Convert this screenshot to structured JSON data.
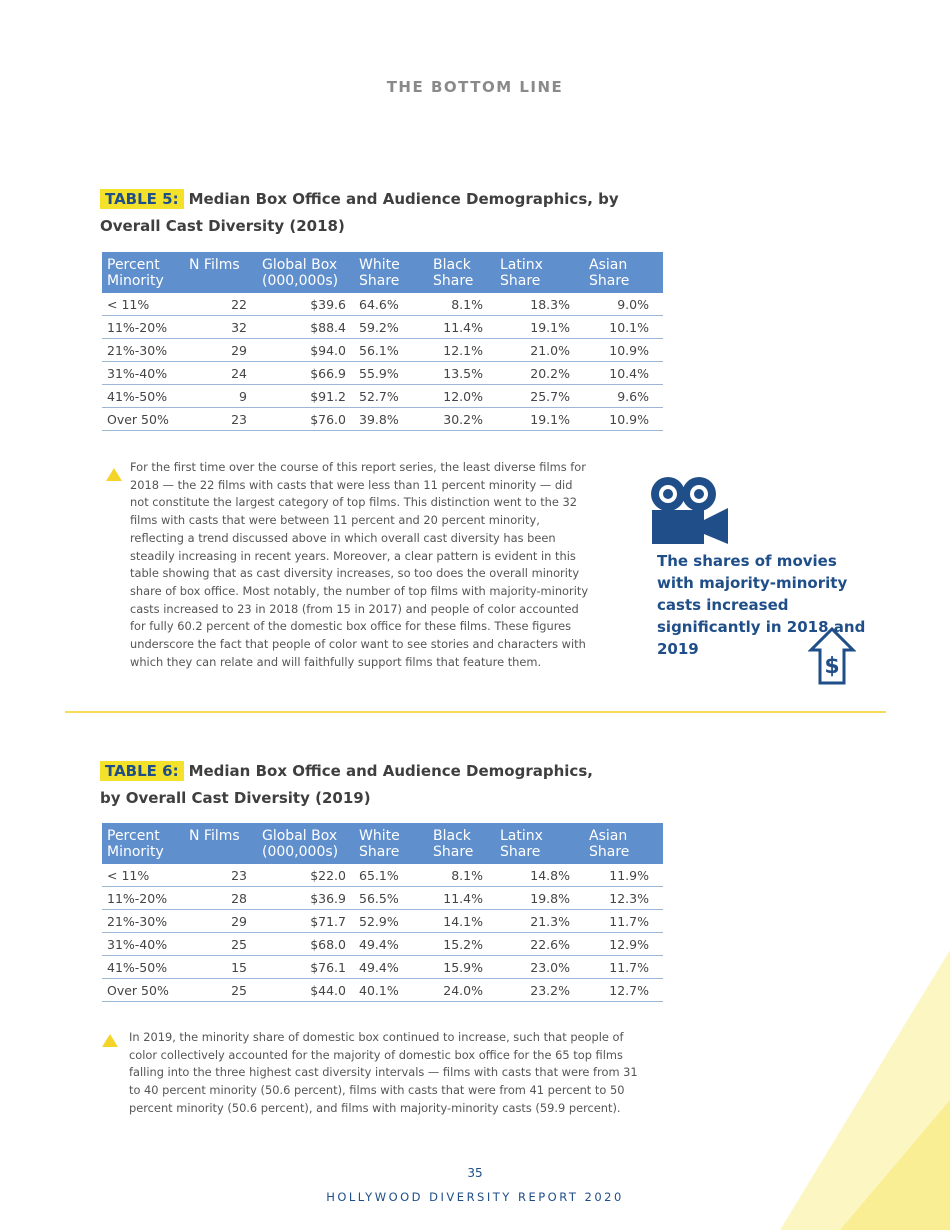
{
  "header": "THE BOTTOM LINE",
  "table5": {
    "tag": "TABLE 5:",
    "title_line1": "Median Box Office and Audience Demographics, by",
    "title_line2": "Overall Cast Diversity (2018)",
    "headers": [
      {
        "l1": "Percent",
        "l2": "Minority"
      },
      {
        "l1": "N Films",
        "l2": ""
      },
      {
        "l1": "Global Box",
        "l2": "(000,000s)"
      },
      {
        "l1": "White",
        "l2": "Share"
      },
      {
        "l1": "Black",
        "l2": "Share"
      },
      {
        "l1": "Latinx",
        "l2": "Share"
      },
      {
        "l1": "Asian",
        "l2": "Share"
      }
    ],
    "rows": [
      [
        "< 11%",
        "22",
        "$39.6",
        "64.6%",
        "8.1%",
        "18.3%",
        "9.0%"
      ],
      [
        "11%-20%",
        "32",
        "$88.4",
        "59.2%",
        "11.4%",
        "19.1%",
        "10.1%"
      ],
      [
        "21%-30%",
        "29",
        "$94.0",
        "56.1%",
        "12.1%",
        "21.0%",
        "10.9%"
      ],
      [
        "31%-40%",
        "24",
        "$66.9",
        "55.9%",
        "13.5%",
        "20.2%",
        "10.4%"
      ],
      [
        "41%-50%",
        "9",
        "$91.2",
        "52.7%",
        "12.0%",
        "25.7%",
        "9.6%"
      ],
      [
        "Over 50%",
        "23",
        "$76.0",
        "39.8%",
        "30.2%",
        "19.1%",
        "10.9%"
      ]
    ]
  },
  "paragraph1": "For the first time over the course of this report series, the least diverse films for 2018 — the 22 films with casts that were less than 11 percent minority — did not constitute the largest category of top films.  This distinction went to the 32 films with casts that were between 11 percent and 20 percent minority, reflecting a trend discussed above in which overall cast diversity has been steadily increasing in recent years.  Moreover, a clear pattern is evident in this table showing that as cast diversity increases, so too does the overall minority share of box office.  Most notably, the number of top films with majority-minority casts increased to 23 in 2018 (from 15 in 2017) and people of color accounted for fully 60.2 percent of the domestic box office for these films.  These figures underscore the fact that people of color want to see stories and characters with which they can relate and will faithfully support films that feature them.",
  "callout": "The shares of movies with majority-minority casts increased significantly in 2018 and 2019",
  "table6": {
    "tag": "TABLE 6:",
    "title_line1": "Median Box Office and Audience Demographics,",
    "title_line2": "by Overall Cast Diversity (2019)",
    "headers": [
      {
        "l1": "Percent",
        "l2": "Minority"
      },
      {
        "l1": "N Films",
        "l2": ""
      },
      {
        "l1": "Global Box",
        "l2": "(000,000s)"
      },
      {
        "l1": "White",
        "l2": "Share"
      },
      {
        "l1": "Black",
        "l2": "Share"
      },
      {
        "l1": "Latinx",
        "l2": "Share"
      },
      {
        "l1": "Asian",
        "l2": "Share"
      }
    ],
    "rows": [
      [
        "< 11%",
        "23",
        "$22.0",
        "65.1%",
        "8.1%",
        "14.8%",
        "11.9%"
      ],
      [
        "11%-20%",
        "28",
        "$36.9",
        "56.5%",
        "11.4%",
        "19.8%",
        "12.3%"
      ],
      [
        "21%-30%",
        "29",
        "$71.7",
        "52.9%",
        "14.1%",
        "21.3%",
        "11.7%"
      ],
      [
        "31%-40%",
        "25",
        "$68.0",
        "49.4%",
        "15.2%",
        "22.6%",
        "12.9%"
      ],
      [
        "41%-50%",
        "15",
        "$76.1",
        "49.4%",
        "15.9%",
        "23.0%",
        "11.7%"
      ],
      [
        "Over 50%",
        "25",
        "$44.0",
        "40.1%",
        "24.0%",
        "23.2%",
        "12.7%"
      ]
    ]
  },
  "paragraph2": "In 2019, the minority share of domestic box continued to increase, such that people of color collectively accounted for the majority of domestic box office for the 65 top films falling into the three highest cast diversity intervals — films with casts that were from 31 to 40 percent minority (50.6 percent), films with casts that were from 41 percent to 50 percent minority (50.6 percent), and films with majority-minority casts (59.9 percent).",
  "page_number": "35",
  "footer": "HOLLYWOOD DIVERSITY REPORT 2020",
  "colors": {
    "accent_blue": "#1f4e89",
    "table_header": "#5f8fcc",
    "highlight_yellow": "#f4e22a"
  },
  "icons": [
    "movie-camera-icon",
    "dollar-up-arrow-icon",
    "bullet-triangle-icon"
  ]
}
